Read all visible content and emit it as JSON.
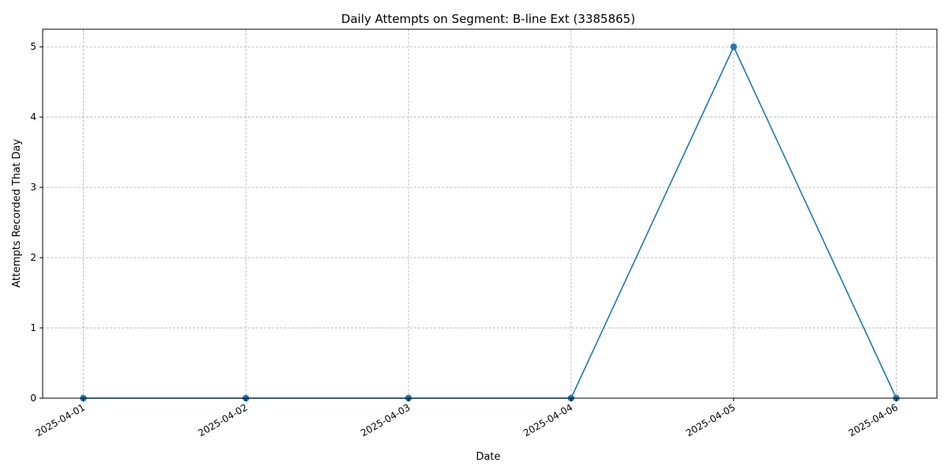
{
  "chart_data": {
    "type": "line",
    "title": "Daily Attempts on Segment: B-line Ext (3385865)",
    "xlabel": "Date",
    "ylabel": "Attempts Recorded That Day",
    "x": [
      "2025-04-01",
      "2025-04-02",
      "2025-04-03",
      "2025-04-04",
      "2025-04-05",
      "2025-04-06"
    ],
    "series": [
      {
        "values": [
          0,
          0,
          0,
          0,
          5,
          0
        ],
        "color": "#1f77b4",
        "marker": "circle"
      }
    ],
    "ylim": [
      0,
      5.25
    ],
    "yticks": [
      0,
      1,
      2,
      3,
      4,
      5
    ],
    "grid": true,
    "legend": "none"
  }
}
